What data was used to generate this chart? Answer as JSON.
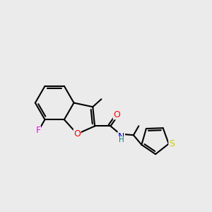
{
  "background_color": "#ebebeb",
  "bond_color": "#000000",
  "bond_width": 1.5,
  "atom_colors": {
    "O_carbonyl": "#ff0000",
    "O_furan": "#ff0000",
    "N": "#0000cd",
    "H": "#008080",
    "F": "#ff00ff",
    "S": "#cccc00"
  },
  "figsize": [
    3.0,
    3.0
  ],
  "dpi": 100
}
